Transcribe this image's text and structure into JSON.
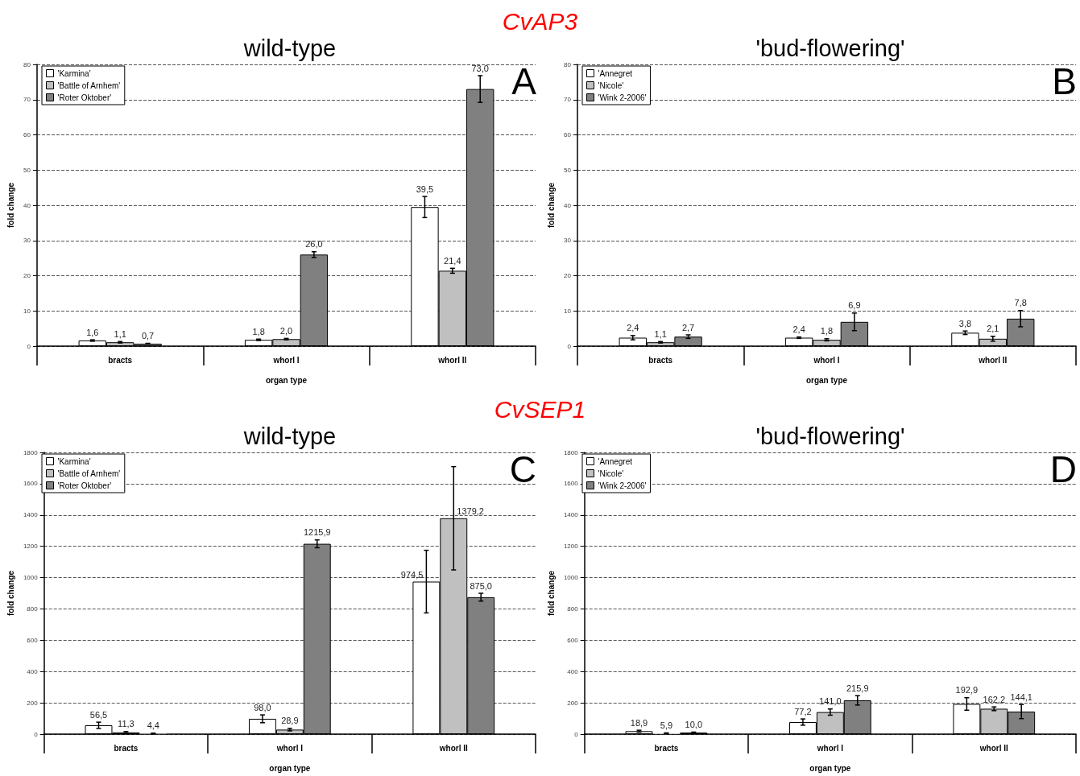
{
  "chart_data": [
    {
      "type": "bar",
      "title": "wild-type",
      "xlabel": "organ type",
      "ylabel": "fold change",
      "annotations": [
        "A",
        "CvAP3"
      ],
      "categories": [
        "bracts",
        "whorl I",
        "whorl II"
      ],
      "ylim": [
        0,
        80
      ],
      "yticks": [
        0,
        10,
        20,
        30,
        40,
        50,
        60,
        70,
        80
      ],
      "grid": "y",
      "legend": "top left",
      "series": [
        {
          "name": "'Karmina'",
          "color": "#ffffff",
          "values": [
            1.6,
            1.8,
            39.5
          ],
          "errors": [
            0.2,
            0.2,
            3
          ],
          "value_labels": [
            "1,6",
            "1,8",
            "39,5"
          ]
        },
        {
          "name": "'Battle of Arnhem'",
          "color": "#c0c0c0",
          "values": [
            1.1,
            2.0,
            21.4
          ],
          "errors": [
            0.2,
            0.2,
            0.7
          ],
          "value_labels": [
            "1,1",
            "2,0",
            "21,4"
          ]
        },
        {
          "name": "'Roter Oktober'",
          "color": "#808080",
          "values": [
            0.7,
            26.0,
            73.0
          ],
          "errors": [
            0.1,
            0.8,
            3.8
          ],
          "value_labels": [
            "0,7",
            "26,0",
            "73,0"
          ]
        }
      ]
    },
    {
      "type": "bar",
      "title": "'bud-flowering'",
      "xlabel": "organ type",
      "ylabel": "fold change",
      "annotations": [
        "B"
      ],
      "categories": [
        "bracts",
        "whorl I",
        "whorl II"
      ],
      "ylim": [
        0,
        80
      ],
      "yticks": [
        0,
        10,
        20,
        30,
        40,
        50,
        60,
        70,
        80
      ],
      "grid": "y",
      "legend": "top left",
      "series": [
        {
          "name": "'Annegret",
          "color": "#ffffff",
          "values": [
            2.4,
            2.4,
            3.8
          ],
          "errors": [
            0.6,
            0.2,
            0.5
          ],
          "value_labels": [
            "2,4",
            "2,4",
            "3,8"
          ]
        },
        {
          "name": "'Nicole'",
          "color": "#c0c0c0",
          "values": [
            1.1,
            1.8,
            2.1
          ],
          "errors": [
            0.2,
            0.3,
            0.7
          ],
          "value_labels": [
            "1,1",
            "1,8",
            "2,1"
          ]
        },
        {
          "name": "'Wink 2-2006'",
          "color": "#808080",
          "values": [
            2.7,
            6.9,
            7.8
          ],
          "errors": [
            0.5,
            2.5,
            2.3
          ],
          "value_labels": [
            "2,7",
            "6,9",
            "7,8"
          ]
        }
      ]
    },
    {
      "type": "bar",
      "title": "wild-type",
      "xlabel": "organ type",
      "ylabel": "fold change",
      "annotations": [
        "C",
        "CvSEP1"
      ],
      "categories": [
        "bracts",
        "whorl I",
        "whorl II"
      ],
      "ylim": [
        0,
        1800
      ],
      "yticks": [
        0,
        200,
        400,
        600,
        800,
        1000,
        1200,
        1400,
        1600,
        1800
      ],
      "grid": "y",
      "legend": "top left",
      "series": [
        {
          "name": "'Karmina'",
          "color": "#ffffff",
          "values": [
            56.5,
            98.0,
            974.5
          ],
          "errors": [
            20,
            25,
            200
          ],
          "value_labels": [
            "56,5",
            "98,0",
            "974,5"
          ]
        },
        {
          "name": "'Battle of Arnhem'",
          "color": "#c0c0c0",
          "values": [
            11.3,
            28.9,
            1379.2
          ],
          "errors": [
            5,
            8,
            330
          ],
          "value_labels": [
            "11,3",
            "28,9",
            "1379,2"
          ]
        },
        {
          "name": "'Roter Oktober'",
          "color": "#808080",
          "values": [
            4.4,
            1215.9,
            875.0
          ],
          "errors": [
            2,
            25,
            25
          ],
          "value_labels": [
            "4,4",
            "1215,9",
            "875,0"
          ]
        }
      ]
    },
    {
      "type": "bar",
      "title": "'bud-flowering'",
      "xlabel": "organ type",
      "ylabel": "fold change",
      "annotations": [
        "D"
      ],
      "categories": [
        "bracts",
        "whorl I",
        "whorl II"
      ],
      "ylim": [
        0,
        1800
      ],
      "yticks": [
        0,
        200,
        400,
        600,
        800,
        1000,
        1200,
        1400,
        1600,
        1800
      ],
      "grid": "y",
      "legend": "top left",
      "series": [
        {
          "name": "'Annegret",
          "color": "#ffffff",
          "values": [
            18.9,
            77.2,
            192.9
          ],
          "errors": [
            6,
            20,
            40
          ],
          "value_labels": [
            "18,9",
            "77,2",
            "192,9"
          ]
        },
        {
          "name": "'Nicole'",
          "color": "#c0c0c0",
          "values": [
            5.9,
            141.0,
            162.2
          ],
          "errors": [
            2,
            20,
            12
          ],
          "value_labels": [
            "5,9",
            "141,0",
            "162,2"
          ]
        },
        {
          "name": "'Wink 2-2006'",
          "color": "#808080",
          "values": [
            10.0,
            215.9,
            144.1
          ],
          "errors": [
            3,
            30,
            45
          ],
          "value_labels": [
            "10,0",
            "215,9",
            "144,1"
          ]
        }
      ]
    }
  ]
}
